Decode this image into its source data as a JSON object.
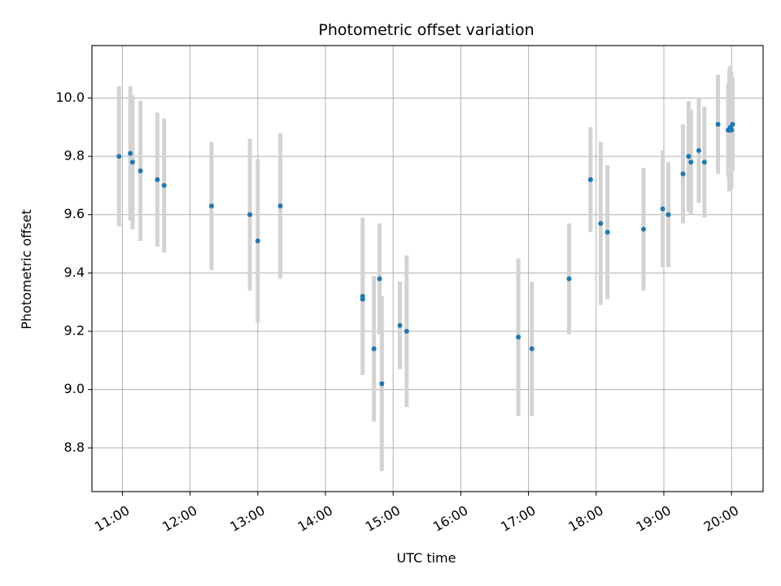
{
  "chart_data": {
    "type": "scatter",
    "title": "Photometric offset variation",
    "xlabel": "UTC time",
    "ylabel": "Photometric offset",
    "xlim": [
      "10:33",
      "20:28"
    ],
    "ylim": [
      8.65,
      10.18
    ],
    "grid": true,
    "x_ticks": [
      "11:00",
      "12:00",
      "13:00",
      "14:00",
      "15:00",
      "16:00",
      "17:00",
      "18:00",
      "19:00",
      "20:00"
    ],
    "y_ticks": [
      "8.8",
      "9.0",
      "9.2",
      "9.4",
      "9.6",
      "9.8",
      "10.0"
    ],
    "colors": {
      "point": "#1f77b4",
      "errorbar": "#d3d3d3",
      "grid": "#b0b0b0"
    },
    "points": [
      {
        "x": "10:57",
        "y": 9.8,
        "err": 0.24
      },
      {
        "x": "11:07",
        "y": 9.81,
        "err": 0.23
      },
      {
        "x": "11:09",
        "y": 9.78,
        "err": 0.23
      },
      {
        "x": "11:16",
        "y": 9.75,
        "err": 0.24
      },
      {
        "x": "11:31",
        "y": 9.72,
        "err": 0.23
      },
      {
        "x": "11:37",
        "y": 9.7,
        "err": 0.23
      },
      {
        "x": "12:19",
        "y": 9.63,
        "err": 0.22
      },
      {
        "x": "12:53",
        "y": 9.6,
        "err": 0.26
      },
      {
        "x": "13:00",
        "y": 9.51,
        "err": 0.28
      },
      {
        "x": "13:20",
        "y": 9.63,
        "err": 0.25
      },
      {
        "x": "14:33",
        "y": 9.32,
        "err": 0.27
      },
      {
        "x": "14:33",
        "y": 9.31,
        "err": 0.26
      },
      {
        "x": "14:43",
        "y": 9.14,
        "err": 0.25
      },
      {
        "x": "14:48",
        "y": 9.38,
        "err": 0.19
      },
      {
        "x": "14:50",
        "y": 9.02,
        "err": 0.3
      },
      {
        "x": "15:06",
        "y": 9.22,
        "err": 0.15
      },
      {
        "x": "15:12",
        "y": 9.2,
        "err": 0.26
      },
      {
        "x": "16:51",
        "y": 9.18,
        "err": 0.27
      },
      {
        "x": "17:03",
        "y": 9.14,
        "err": 0.23
      },
      {
        "x": "17:36",
        "y": 9.38,
        "err": 0.19
      },
      {
        "x": "17:55",
        "y": 9.72,
        "err": 0.18
      },
      {
        "x": "18:04",
        "y": 9.57,
        "err": 0.28
      },
      {
        "x": "18:10",
        "y": 9.54,
        "err": 0.23
      },
      {
        "x": "18:42",
        "y": 9.55,
        "err": 0.21
      },
      {
        "x": "18:59",
        "y": 9.62,
        "err": 0.2
      },
      {
        "x": "19:04",
        "y": 9.6,
        "err": 0.18
      },
      {
        "x": "19:17",
        "y": 9.74,
        "err": 0.17
      },
      {
        "x": "19:22",
        "y": 9.8,
        "err": 0.19
      },
      {
        "x": "19:24",
        "y": 9.78,
        "err": 0.18
      },
      {
        "x": "19:31",
        "y": 9.82,
        "err": 0.18
      },
      {
        "x": "19:36",
        "y": 9.78,
        "err": 0.19
      },
      {
        "x": "19:48",
        "y": 9.91,
        "err": 0.17
      },
      {
        "x": "19:57",
        "y": 9.89,
        "err": 0.16
      },
      {
        "x": "19:58",
        "y": 9.89,
        "err": 0.21
      },
      {
        "x": "19:59",
        "y": 9.9,
        "err": 0.21
      },
      {
        "x": "20:00",
        "y": 9.89,
        "err": 0.2
      },
      {
        "x": "20:01",
        "y": 9.91,
        "err": 0.16
      }
    ]
  }
}
